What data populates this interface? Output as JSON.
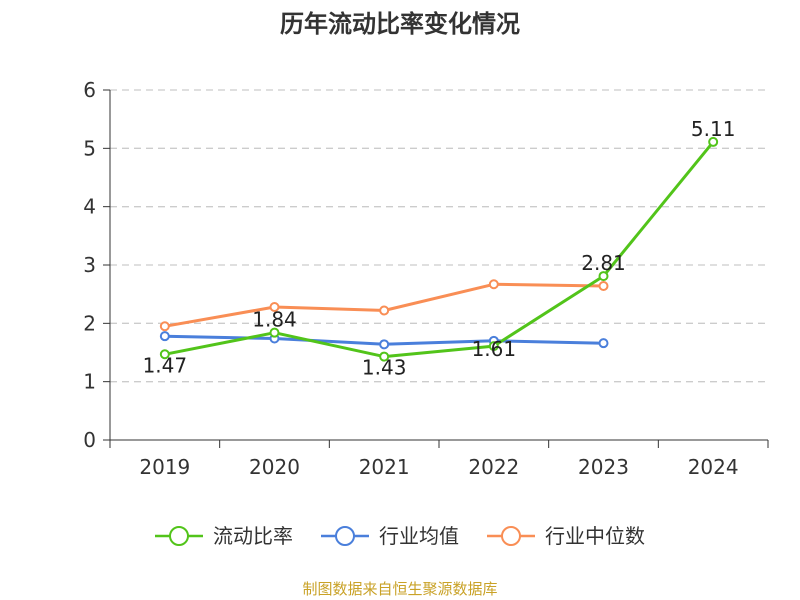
{
  "title": "历年流动比率变化情况",
  "source_note": "制图数据来自恒生聚源数据库",
  "colors": {
    "source_note": "#C9A227",
    "axis": "#333333",
    "grid": "#cccccc"
  },
  "chart_data": {
    "type": "line",
    "title": "历年流动比率变化情况",
    "categories": [
      "2019",
      "2020",
      "2021",
      "2022",
      "2023",
      "2024"
    ],
    "ylim": [
      0,
      6
    ],
    "yticks": [
      0,
      1,
      2,
      3,
      4,
      5,
      6
    ],
    "grid": true,
    "legend_position": "bottom",
    "series": [
      {
        "name": "流动比率",
        "color": "#52C41A",
        "values": [
          1.47,
          1.84,
          1.43,
          1.61,
          2.81,
          5.11
        ],
        "labels": [
          "1.47",
          "1.84",
          "1.43",
          "1.61",
          "2.81",
          "5.11"
        ]
      },
      {
        "name": "行业均值",
        "color": "#4A7FDB",
        "values": [
          1.78,
          1.74,
          1.64,
          1.7,
          1.66,
          null
        ]
      },
      {
        "name": "行业中位数",
        "color": "#F98E55",
        "values": [
          1.95,
          2.28,
          2.22,
          2.67,
          2.64,
          null
        ]
      }
    ]
  }
}
